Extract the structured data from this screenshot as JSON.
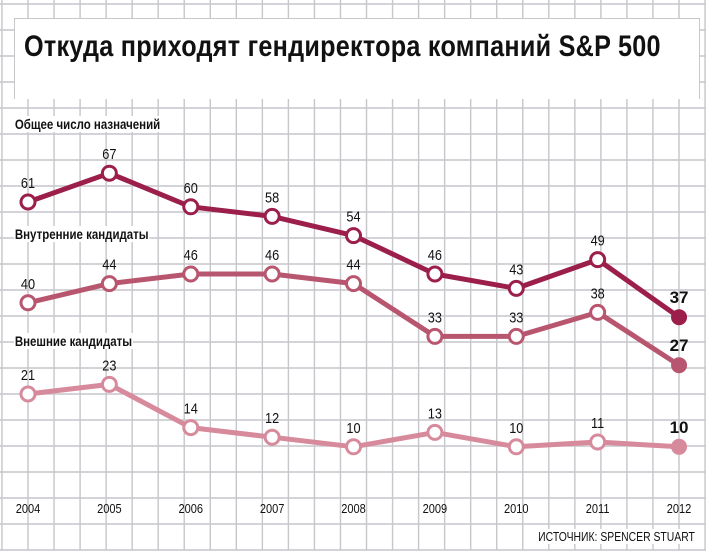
{
  "title": "Откуда приходят гендиректора компаний S&P 500",
  "source": "ИСТОЧНИК: SPENCER STUART",
  "chart_data": {
    "type": "line",
    "title": "Откуда приходят гендиректора компаний S&P 500",
    "x": [
      "2004",
      "2005",
      "2006",
      "2007",
      "2008",
      "2009",
      "2010",
      "2011",
      "2012"
    ],
    "grid": true,
    "legend": "inline-left",
    "series": [
      {
        "name": "Общее число назначений",
        "color": "#9b1f4a",
        "values": [
          61,
          67,
          60,
          58,
          54,
          46,
          43,
          49,
          37
        ]
      },
      {
        "name": "Внутренние кандидаты",
        "color": "#b9566f",
        "values": [
          40,
          44,
          46,
          46,
          44,
          33,
          33,
          38,
          27
        ]
      },
      {
        "name": "Внешние кандидаты",
        "color": "#d78a9c",
        "values": [
          21,
          23,
          14,
          12,
          10,
          13,
          10,
          11,
          10
        ]
      }
    ]
  }
}
